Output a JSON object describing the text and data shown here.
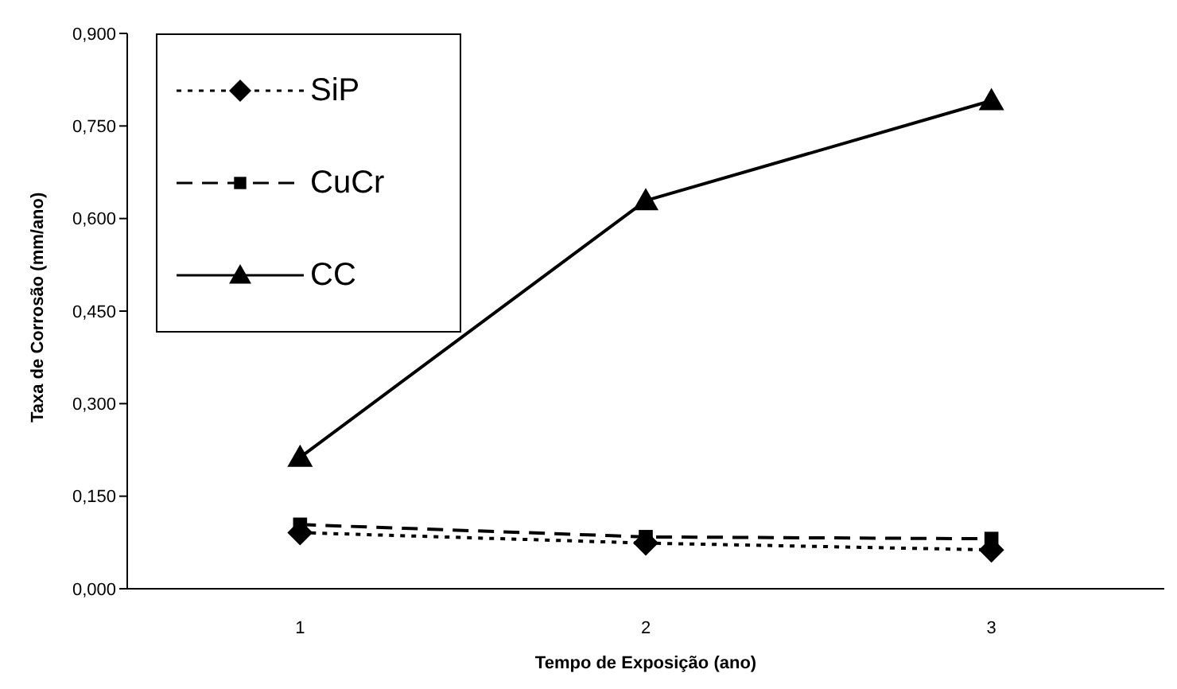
{
  "chart_data": {
    "type": "line",
    "xlabel": "Tempo de Exposição (ano)",
    "ylabel": "Taxa de Corrosão (mm/ano)",
    "categories": [
      "1",
      "2",
      "3"
    ],
    "series": [
      {
        "name": "SiP",
        "color": "#000000",
        "values": [
          0.091,
          0.074,
          0.063
        ],
        "marker": "diamond",
        "line_style": "dotted"
      },
      {
        "name": "CuCr",
        "color": "#000000",
        "values": [
          0.104,
          0.084,
          0.081
        ],
        "marker": "square",
        "line_style": "dashed"
      },
      {
        "name": "CC",
        "color": "#000000",
        "values": [
          0.213,
          0.629,
          0.791
        ],
        "marker": "triangle",
        "line_style": "solid"
      }
    ],
    "ylim": [
      0,
      0.9
    ],
    "yticks": [
      {
        "value": 0,
        "label": "0,000"
      },
      {
        "value": 0.15,
        "label": "0,150"
      },
      {
        "value": 0.3,
        "label": "0,300"
      },
      {
        "value": 0.45,
        "label": "0,450"
      },
      {
        "value": 0.6,
        "label": "0,600"
      },
      {
        "value": 0.75,
        "label": "0,750"
      },
      {
        "value": 0.9,
        "label": "0,900"
      }
    ],
    "grid": false,
    "legend": "top left"
  }
}
